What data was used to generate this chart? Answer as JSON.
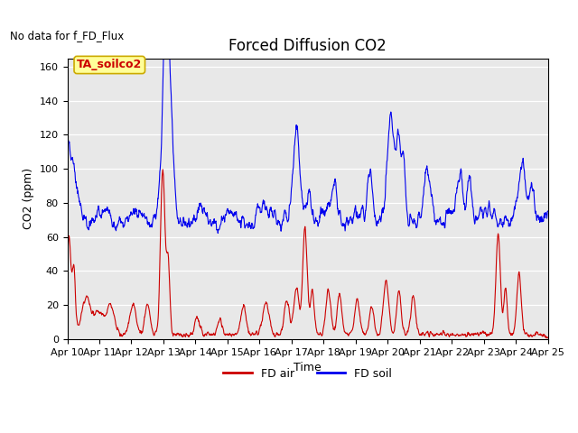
{
  "title": "Forced Diffusion CO2",
  "xlabel": "Time",
  "ylabel": "CO2 (ppm)",
  "top_left_text": "No data for f_FD_Flux",
  "annotation_box": "TA_soilco2",
  "ylim": [
    0,
    165
  ],
  "yticks": [
    0,
    20,
    40,
    60,
    80,
    100,
    120,
    140,
    160
  ],
  "xstart": 0,
  "xend": 15,
  "xtick_labels": [
    "Apr 10",
    "Apr 11",
    "Apr 12",
    "Apr 13",
    "Apr 14",
    "Apr 15",
    "Apr 16",
    "Apr 17",
    "Apr 18",
    "Apr 19",
    "Apr 20",
    "Apr 21",
    "Apr 22",
    "Apr 23",
    "Apr 24",
    "Apr 25"
  ],
  "xtick_positions": [
    0,
    1,
    2,
    3,
    4,
    5,
    6,
    7,
    8,
    9,
    10,
    11,
    12,
    13,
    14,
    15
  ],
  "fd_air_color": "#cc0000",
  "fd_soil_color": "#0000ee",
  "background_color": "#e8e8e8",
  "legend_fd_air": "FD air",
  "legend_fd_soil": "FD soil",
  "title_fontsize": 12,
  "axis_fontsize": 9,
  "tick_fontsize": 8,
  "annotation_facecolor": "#ffff99",
  "annotation_edgecolor": "#ccaa00",
  "fig_width": 6.4,
  "fig_height": 4.8,
  "dpi": 100
}
